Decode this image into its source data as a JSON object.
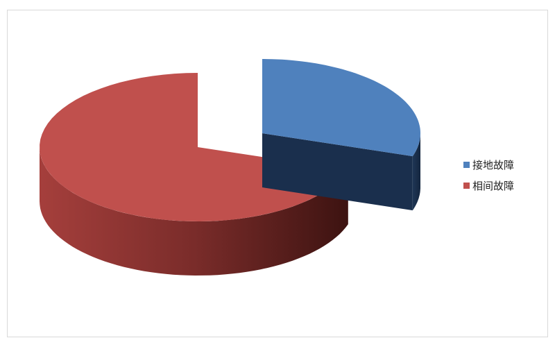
{
  "chart_data": {
    "type": "pie",
    "style": "3d-exploded",
    "categories": [
      "接地故障",
      "相间故障"
    ],
    "values": [
      30,
      70
    ],
    "colors": [
      "#4f81bd",
      "#c0504d"
    ],
    "legend_position": "right",
    "title": ""
  }
}
